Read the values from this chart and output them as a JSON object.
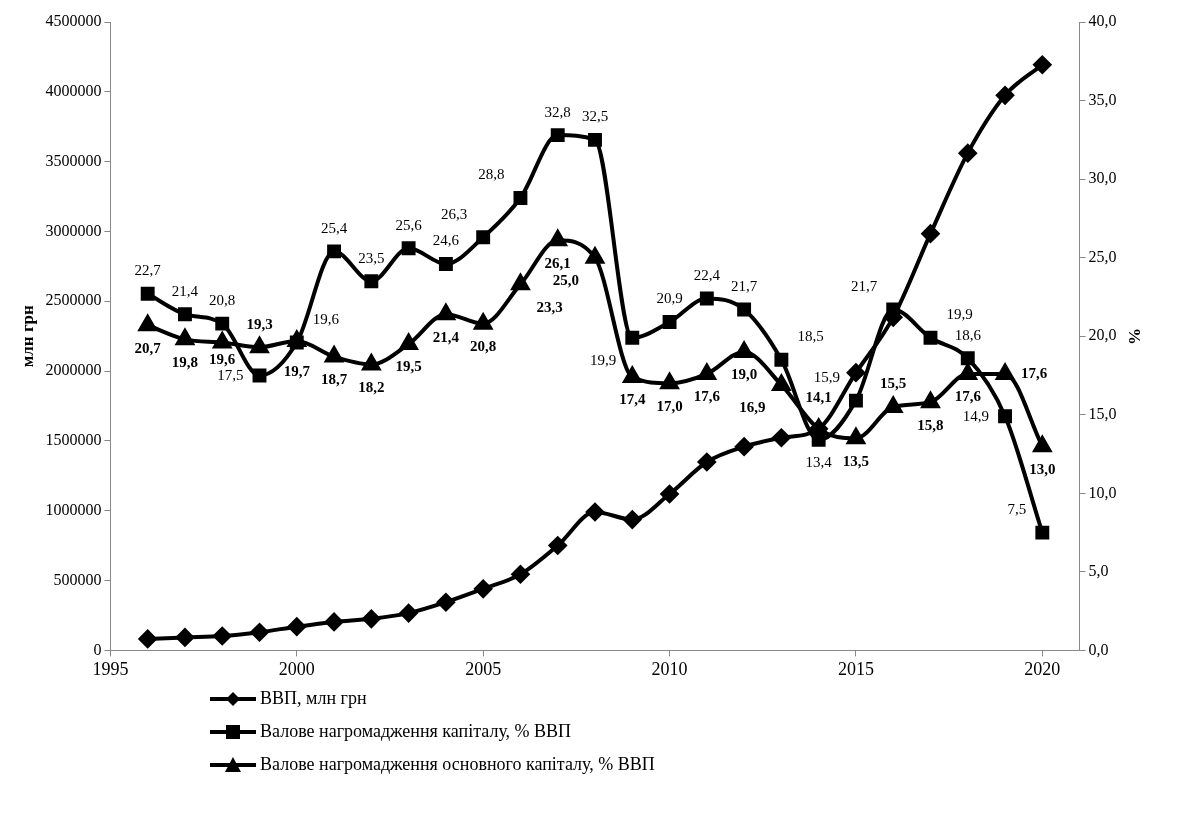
{
  "chart_data": {
    "type": "line",
    "ylabel": "млн грн",
    "y2label": "%",
    "x": [
      1996,
      1997,
      1998,
      1999,
      2000,
      2001,
      2002,
      2003,
      2004,
      2005,
      2006,
      2007,
      2008,
      2009,
      2010,
      2011,
      2012,
      2013,
      2014,
      2015,
      2016,
      2017,
      2018,
      2019,
      2020
    ],
    "series": [
      {
        "name": "ВВП, млн грн",
        "color": "#000000",
        "marker": "diamond",
        "values": [
          82000,
          93000,
          103000,
          130000,
          170000,
          204000,
          226000,
          267000,
          345000,
          441000,
          545000,
          751000,
          991000,
          937000,
          1120000,
          1349000,
          1459000,
          1523000,
          1587000,
          1989000,
          2385000,
          2984000,
          3561000,
          3975000,
          4194000
        ]
      },
      {
        "name": "Валове нагромадження капіталу, % ВВП",
        "color": "#000000",
        "marker": "square",
        "axis": "y2",
        "value_labels": [
          "22,7",
          "21,4",
          "20,8",
          "17,5",
          "19,6",
          "25,4",
          "23,5",
          "25,6",
          "24,6",
          "26,3",
          "28,8",
          "32,8",
          "32,5",
          "19,9",
          "20,9",
          "22,4",
          "21,7",
          "18,5",
          "13,4",
          "15,9",
          "21,7",
          "19,9",
          "18,6",
          "14,9",
          "7,5"
        ],
        "values": [
          22.7,
          21.4,
          20.8,
          17.5,
          19.6,
          25.4,
          23.5,
          25.6,
          24.6,
          26.3,
          28.8,
          32.8,
          32.5,
          19.9,
          20.9,
          22.4,
          21.7,
          18.5,
          13.4,
          15.9,
          21.7,
          19.9,
          18.6,
          14.9,
          7.5
        ]
      },
      {
        "name": "Валове нагромадження основного капіталу, % ВВП",
        "color": "#000000",
        "marker": "triangle",
        "axis": "y2",
        "value_labels": [
          "20,7",
          "19,8",
          "19,6",
          "19,3",
          "19,7",
          "18,7",
          "18,2",
          "19,5",
          "21,4",
          "20,8",
          "23,3",
          "26,1",
          "25,0",
          "17,4",
          "17,0",
          "17,6",
          "19,0",
          "16,9",
          "14,1",
          "13,5",
          "15,5",
          "15,8",
          "17,6",
          "17,6",
          "13,0"
        ],
        "values": [
          20.7,
          19.8,
          19.6,
          19.3,
          19.7,
          18.7,
          18.2,
          19.5,
          21.4,
          20.8,
          23.3,
          26.1,
          25.0,
          17.4,
          17.0,
          17.6,
          19.0,
          16.9,
          14.1,
          13.5,
          15.5,
          15.8,
          17.6,
          17.6,
          13.0
        ]
      }
    ],
    "xlim": [
      1995,
      2021
    ],
    "xticks": [
      1995,
      2000,
      2005,
      2010,
      2015,
      2020
    ],
    "ylim": [
      0,
      4500000
    ],
    "yticks": [
      0,
      500000,
      1000000,
      1500000,
      2000000,
      2500000,
      3000000,
      3500000,
      4000000,
      4500000
    ],
    "y2lim": [
      0,
      40
    ],
    "y2ticks": [
      {
        "value": 0,
        "label": "0,0"
      },
      {
        "value": 5,
        "label": "5,0"
      },
      {
        "value": 10,
        "label": "10,0"
      },
      {
        "value": 15,
        "label": "15,0"
      },
      {
        "value": 20,
        "label": "20,0"
      },
      {
        "value": 25,
        "label": "25,0"
      },
      {
        "value": 30,
        "label": "30,0"
      },
      {
        "value": 35,
        "label": "35,0"
      },
      {
        "value": 40,
        "label": "40,0"
      }
    ],
    "grid": false,
    "legend": "bottom"
  }
}
